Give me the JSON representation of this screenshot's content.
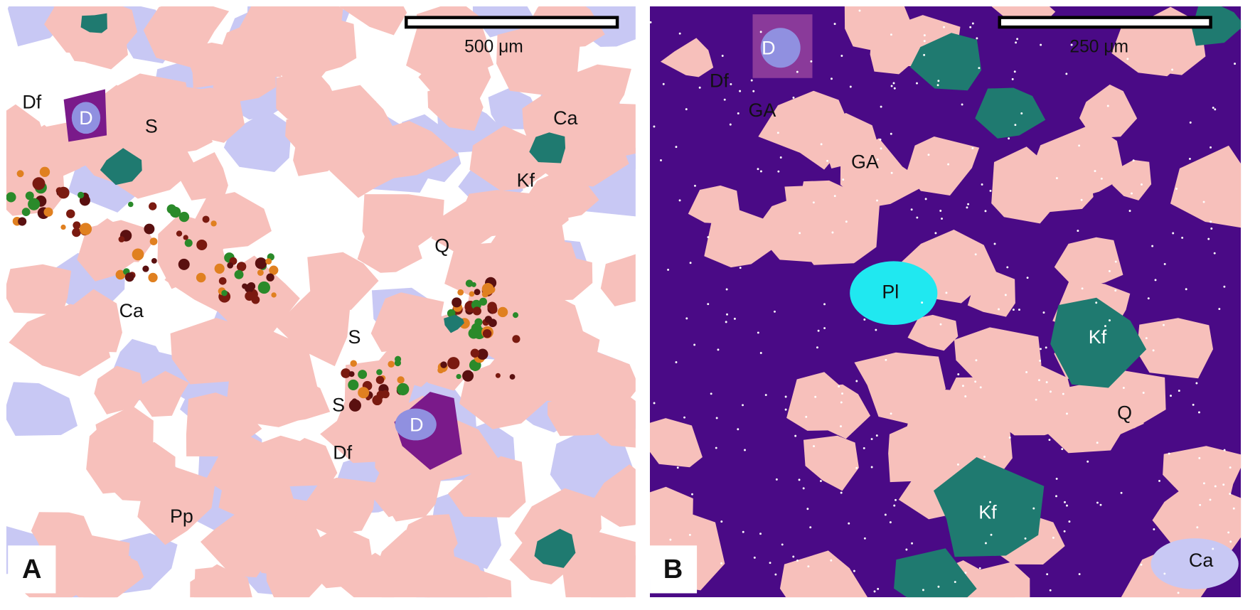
{
  "panels": [
    {
      "label": "A",
      "scale_bar": "500 μm",
      "annotations": [
        "Df",
        "D",
        "S",
        "Ca",
        "Kf",
        "Q",
        "Ca",
        "S",
        "S",
        "D",
        "Df",
        "Pp"
      ]
    },
    {
      "label": "B",
      "scale_bar": "250 μm",
      "annotations": [
        "D",
        "Df",
        "GA",
        "GA",
        "Pl",
        "Kf",
        "Q",
        "Kf",
        "Ca"
      ]
    }
  ]
}
